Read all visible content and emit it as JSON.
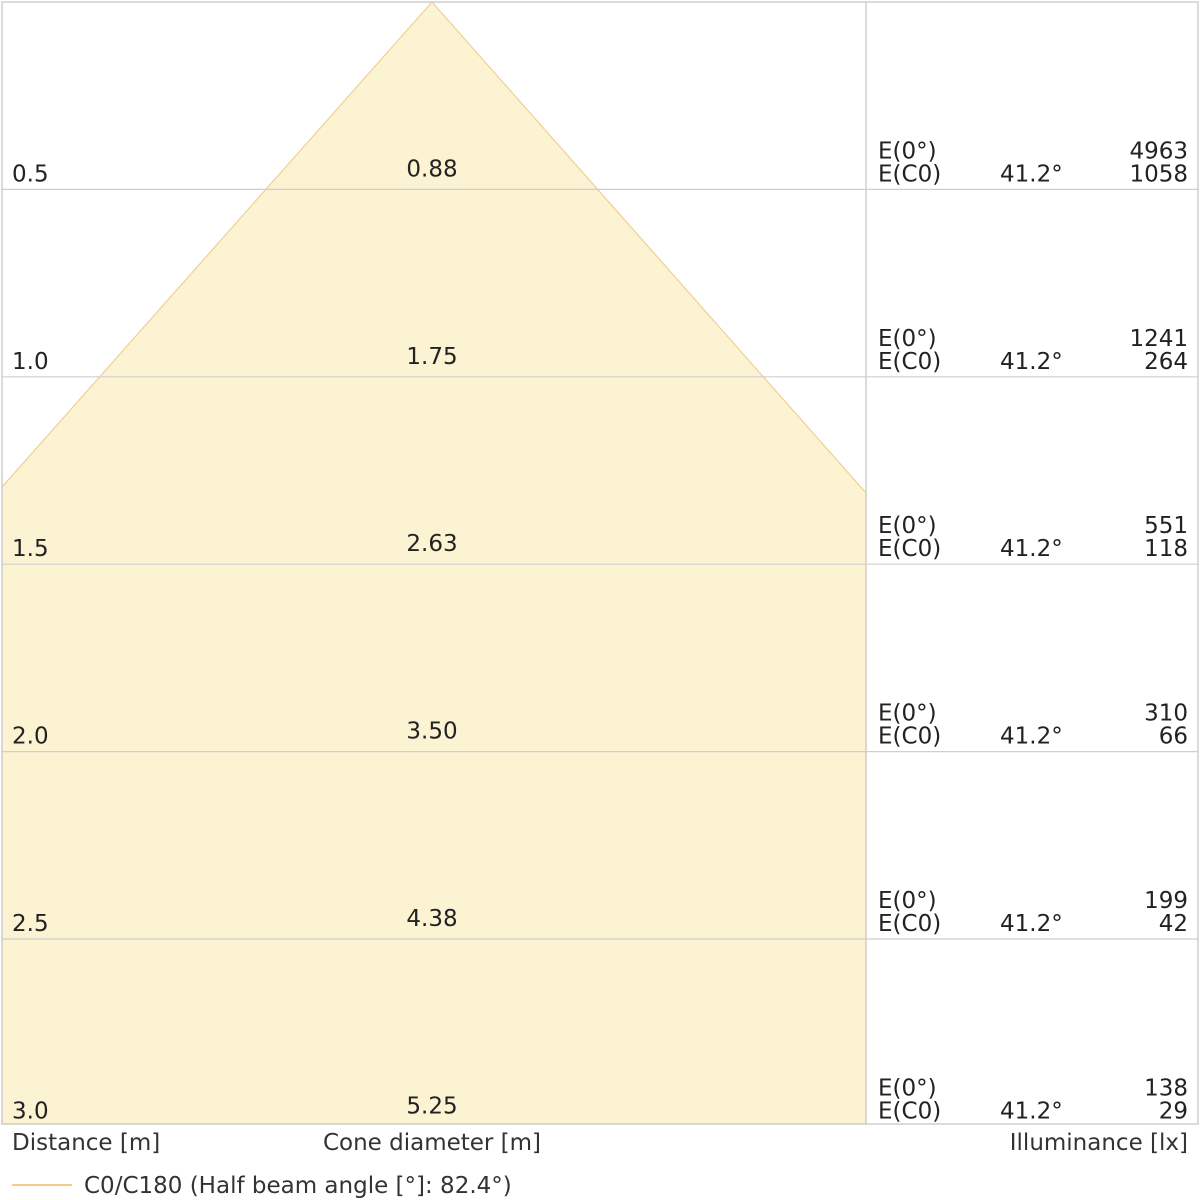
{
  "chart_data": {
    "type": "area",
    "title": "",
    "distance_label": "Distance [m]",
    "diameter_label": "Cone diameter [m]",
    "illuminance_label": "Illuminance [lx]",
    "legend": {
      "label": "C0/C180 (Half beam angle [°]: 82.4°)",
      "color": "#f5c98a"
    },
    "colors": {
      "cone_fill": "#fbf3d2",
      "cone_stroke": "#f0cf93",
      "grid": "#cfcfcf"
    },
    "rows": [
      {
        "distance": "0.5",
        "diameter": "0.88",
        "e0_label": "E(0°)",
        "ec0_label": "E(C0)",
        "angle": "41.2°",
        "e0": "4963",
        "ec0": "1058"
      },
      {
        "distance": "1.0",
        "diameter": "1.75",
        "e0_label": "E(0°)",
        "ec0_label": "E(C0)",
        "angle": "41.2°",
        "e0": "1241",
        "ec0": "264"
      },
      {
        "distance": "1.5",
        "diameter": "2.63",
        "e0_label": "E(0°)",
        "ec0_label": "E(C0)",
        "angle": "41.2°",
        "e0": "551",
        "ec0": "118"
      },
      {
        "distance": "2.0",
        "diameter": "3.50",
        "e0_label": "E(0°)",
        "ec0_label": "E(C0)",
        "angle": "41.2°",
        "e0": "310",
        "ec0": "66"
      },
      {
        "distance": "2.5",
        "diameter": "4.38",
        "e0_label": "E(0°)",
        "ec0_label": "E(C0)",
        "angle": "41.2°",
        "e0": "199",
        "ec0": "42"
      },
      {
        "distance": "3.0",
        "diameter": "5.25",
        "e0_label": "E(0°)",
        "ec0_label": "E(C0)",
        "angle": "41.2°",
        "e0": "138",
        "ec0": "29"
      }
    ]
  }
}
